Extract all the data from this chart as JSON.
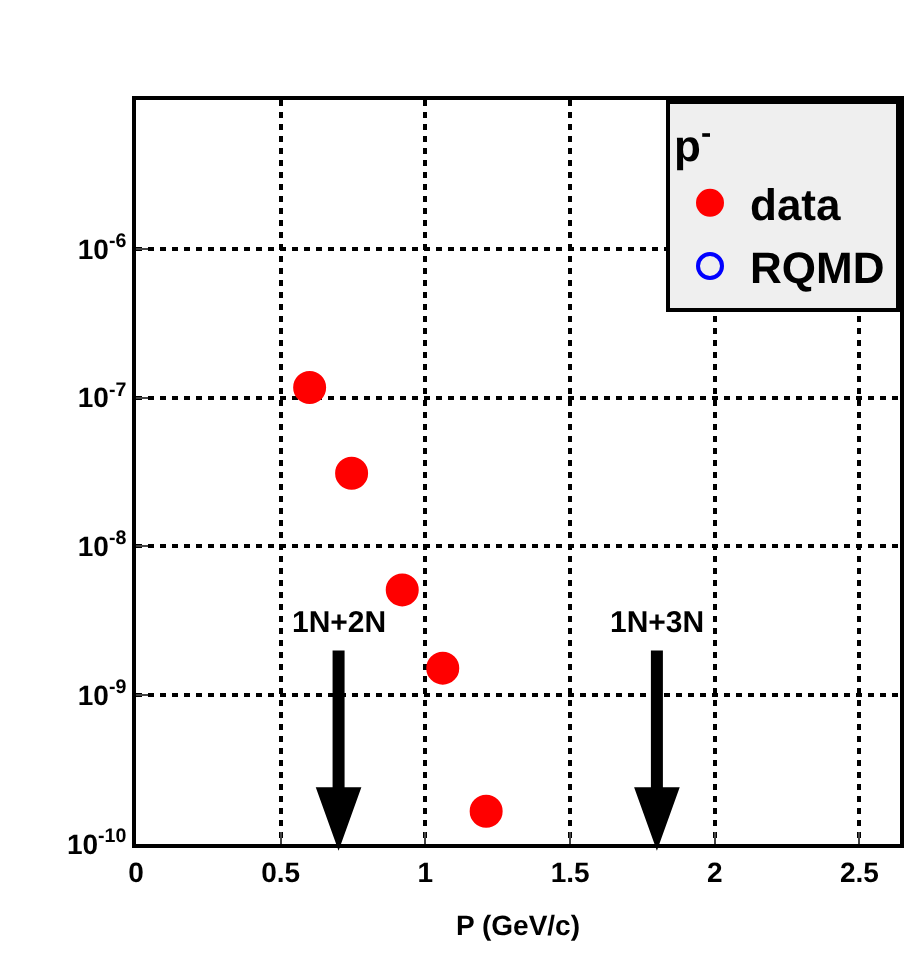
{
  "chart_data": {
    "type": "scatter",
    "xlabel": "P (GeV/c)",
    "legend_title": "p$^{-}$",
    "series": [
      {
        "name": "data",
        "color": "#ff0000",
        "marker": "circle",
        "x": [
          0.6,
          0.745,
          0.92,
          1.06,
          1.21
        ],
        "values": [
          1.17e-07,
          3.1e-08,
          5.1e-09,
          1.52e-09,
          1.66e-10
        ]
      },
      {
        "name": "RQMD",
        "color": "#0000ff",
        "marker": "circle-open",
        "x": [
          null
        ],
        "values": [
          null
        ]
      }
    ],
    "xlim": [
      0,
      2.64
    ],
    "xticks": [
      0,
      0.5,
      1,
      1.5,
      2,
      2.5
    ],
    "ylim": [
      1e-10,
      1e-05
    ],
    "log": "y",
    "yticks": [
      {
        "value": 1e-10,
        "label": "10$^{-10}$"
      },
      {
        "value": 1e-09,
        "label": "10$^{-9}$"
      },
      {
        "value": 1e-08,
        "label": "10$^{-8}$"
      },
      {
        "value": 1e-07,
        "label": "10$^{-7}$"
      },
      {
        "value": 1e-06,
        "label": "10$^{-6}$"
      }
    ],
    "grid": true,
    "legend": "top right",
    "ref_lines": [
      {
        "axis": "x",
        "value": 0.7,
        "label": "1N+2N",
        "color": "#000000"
      },
      {
        "axis": "x",
        "value": 1.8,
        "label": "1N+3N",
        "color": "#000000"
      }
    ]
  }
}
